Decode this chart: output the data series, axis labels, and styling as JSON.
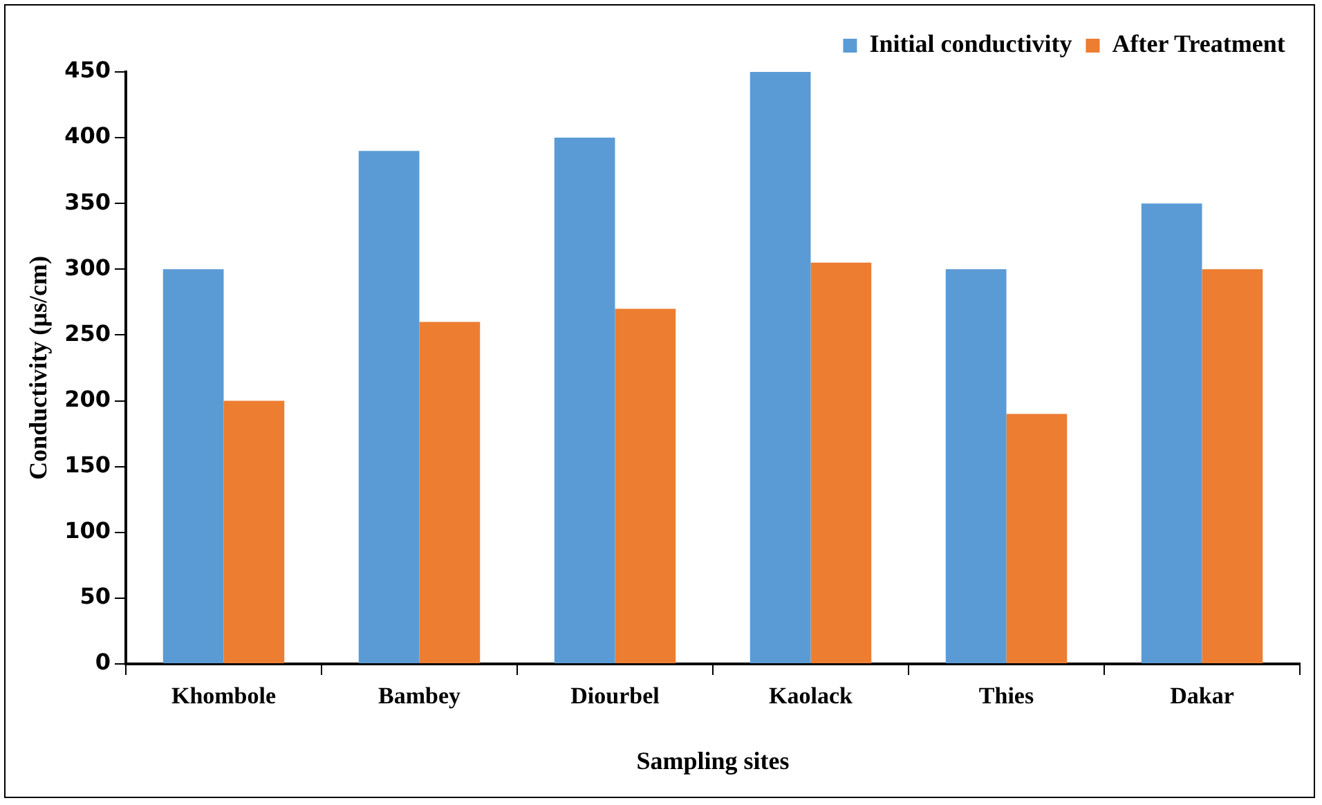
{
  "chart_data": {
    "type": "bar",
    "xlabel": "Sampling sites",
    "ylabel": "Conductivity (µs/cm)",
    "categories": [
      "Khombole",
      "Bambey",
      "Diourbel",
      "Kaolack",
      "Thies",
      "Dakar"
    ],
    "series": [
      {
        "name": "Initial conductivity",
        "color": "#5b9bd5",
        "values": [
          300,
          390,
          400,
          450,
          300,
          350
        ]
      },
      {
        "name": "After Treatment",
        "color": "#ed7d31",
        "values": [
          200,
          260,
          270,
          305,
          190,
          300
        ]
      }
    ],
    "ylim": [
      0,
      450
    ],
    "yticks": [
      0,
      50,
      100,
      150,
      200,
      250,
      300,
      350,
      400,
      450
    ],
    "grid": false,
    "legend": "top right"
  }
}
